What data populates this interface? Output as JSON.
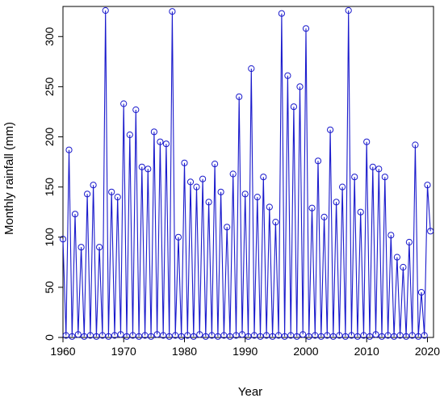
{
  "chart_data": {
    "type": "line",
    "title": "",
    "xlabel": "Year",
    "ylabel": "Monthly rainfall (mm)",
    "xlim": [
      1960,
      2021
    ],
    "ylim": [
      0,
      330
    ],
    "xticks": [
      1960,
      1970,
      1980,
      1990,
      2000,
      2010,
      2020
    ],
    "yticks": [
      0,
      50,
      100,
      150,
      200,
      250,
      300
    ],
    "x_tick_labels": [
      "1960",
      "1970",
      "1980",
      "1990",
      "2000",
      "2010",
      "2020"
    ],
    "y_tick_labels": [
      "0",
      "50",
      "100",
      "150",
      "200",
      "250",
      "300"
    ],
    "grid": false,
    "marker": "open-circle",
    "series_color": "#1a1acc",
    "series": [
      {
        "x": [
          1960.0,
          1960.5,
          1961.0,
          1961.5,
          1962.0,
          1962.5,
          1963.0,
          1963.5,
          1964.0,
          1964.5,
          1965.0,
          1965.5,
          1966.0,
          1966.5,
          1967.0,
          1967.5,
          1968.0,
          1968.5,
          1969.0,
          1969.5,
          1970.0,
          1970.5,
          1971.0,
          1971.5,
          1972.0,
          1972.5,
          1973.0,
          1973.5,
          1974.0,
          1974.5,
          1975.0,
          1975.5,
          1976.0,
          1976.5,
          1977.0,
          1977.5,
          1978.0,
          1978.5,
          1979.0,
          1979.5,
          1980.0,
          1980.5,
          1981.0,
          1981.5,
          1982.0,
          1982.5,
          1983.0,
          1983.5,
          1984.0,
          1984.5,
          1985.0,
          1985.5,
          1986.0,
          1986.5,
          1987.0,
          1987.5,
          1988.0,
          1988.5,
          1989.0,
          1989.5,
          1990.0,
          1990.5,
          1991.0,
          1991.5,
          1992.0,
          1992.5,
          1993.0,
          1993.5,
          1994.0,
          1994.5,
          1995.0,
          1995.5,
          1996.0,
          1996.5,
          1997.0,
          1997.5,
          1998.0,
          1998.5,
          1999.0,
          1999.5,
          2000.0,
          2000.5,
          2001.0,
          2001.5,
          2002.0,
          2002.5,
          2003.0,
          2003.5,
          2004.0,
          2004.5,
          2005.0,
          2005.5,
          2006.0,
          2006.5,
          2007.0,
          2007.5,
          2008.0,
          2008.5,
          2009.0,
          2009.5,
          2010.0,
          2010.5,
          2011.0,
          2011.5,
          2012.0,
          2012.5,
          2013.0,
          2013.5,
          2014.0,
          2014.5,
          2015.0,
          2015.5,
          2016.0,
          2016.5,
          2017.0,
          2017.5,
          2018.0,
          2018.5,
          2019.0,
          2019.5,
          2020.0,
          2020.5
        ],
        "y": [
          98,
          2,
          187,
          1,
          123,
          3,
          90,
          1,
          143,
          2,
          152,
          1,
          90,
          2,
          326,
          1,
          145,
          2,
          140,
          3,
          233,
          1,
          202,
          2,
          227,
          1,
          170,
          2,
          168,
          1,
          205,
          3,
          195,
          2,
          193,
          1,
          325,
          2,
          100,
          1,
          174,
          2,
          155,
          1,
          150,
          3,
          158,
          1,
          135,
          2,
          173,
          1,
          145,
          2,
          110,
          1,
          163,
          2,
          240,
          3,
          143,
          1,
          268,
          2,
          140,
          1,
          160,
          2,
          130,
          1,
          115,
          2,
          323,
          1,
          261,
          2,
          230,
          1,
          250,
          3,
          308,
          1,
          129,
          2,
          176,
          1,
          120,
          2,
          207,
          1,
          135,
          2,
          150,
          1,
          326,
          2,
          160,
          1,
          125,
          2,
          195,
          1,
          170,
          3,
          168,
          1,
          160,
          2,
          102,
          1,
          80,
          2,
          70,
          1,
          95,
          2,
          192,
          1,
          45,
          2,
          152,
          106
        ]
      }
    ]
  }
}
